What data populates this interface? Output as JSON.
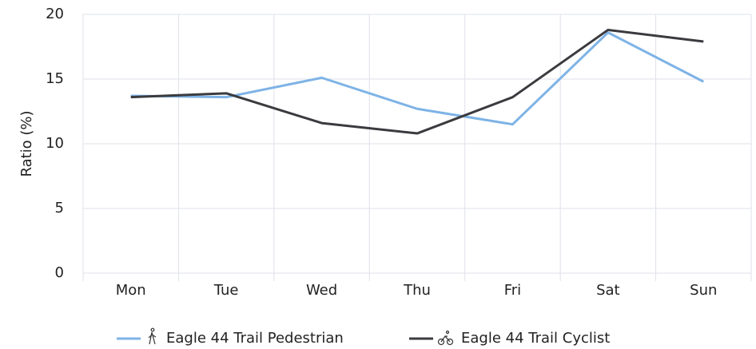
{
  "chart_data": {
    "type": "line",
    "categories": [
      "Mon",
      "Tue",
      "Wed",
      "Thu",
      "Fri",
      "Sat",
      "Sun"
    ],
    "series": [
      {
        "name": "Eagle 44 Trail Pedestrian",
        "color": "#7eb3e6",
        "values": [
          13.7,
          13.6,
          15.1,
          12.7,
          11.5,
          18.6,
          14.8
        ]
      },
      {
        "name": "Eagle 44 Trail Cyclist",
        "color": "#3b3b3f",
        "values": [
          13.6,
          13.9,
          11.6,
          10.8,
          13.6,
          18.8,
          17.9
        ]
      }
    ],
    "y_label": "Ratio (%)",
    "ylim": [
      0,
      20
    ],
    "yticks": [
      0,
      5,
      10,
      15,
      20
    ],
    "grid": true,
    "legend": "bottom"
  }
}
